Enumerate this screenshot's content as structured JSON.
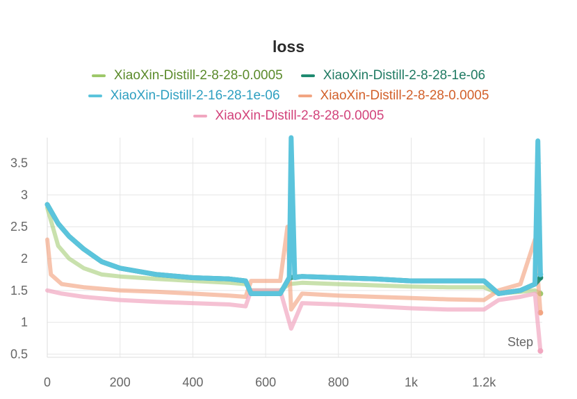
{
  "chart_data": {
    "type": "line",
    "title": "loss",
    "xlabel": "Step",
    "ylabel": "",
    "xlim": [
      0,
      1360
    ],
    "ylim": [
      0.45,
      3.9
    ],
    "grid": true,
    "legend_position": "top-center",
    "x_ticks": [
      {
        "value": 0,
        "label": "0"
      },
      {
        "value": 200,
        "label": "200"
      },
      {
        "value": 400,
        "label": "400"
      },
      {
        "value": 600,
        "label": "600"
      },
      {
        "value": 800,
        "label": "800"
      },
      {
        "value": 1000,
        "label": "1k"
      },
      {
        "value": 1200,
        "label": "1.2k"
      }
    ],
    "y_ticks": [
      {
        "value": 0.5,
        "label": "0.5"
      },
      {
        "value": 1,
        "label": "1"
      },
      {
        "value": 1.5,
        "label": "1.5"
      },
      {
        "value": 2,
        "label": "2"
      },
      {
        "value": 2.5,
        "label": "2.5"
      },
      {
        "value": 3,
        "label": "3"
      },
      {
        "value": 3.5,
        "label": "3.5"
      }
    ],
    "series": [
      {
        "name": "XiaoXin-Distill-2-8-28-0.0005",
        "color": "#9dc86a",
        "text_color": "#5a8a2a",
        "points": [
          [
            0,
            2.8
          ],
          [
            30,
            2.2
          ],
          [
            60,
            2.0
          ],
          [
            100,
            1.85
          ],
          [
            150,
            1.75
          ],
          [
            200,
            1.72
          ],
          [
            300,
            1.68
          ],
          [
            400,
            1.65
          ],
          [
            500,
            1.62
          ],
          [
            545,
            1.6
          ],
          [
            560,
            1.5
          ],
          [
            640,
            1.5
          ],
          [
            665,
            1.6
          ],
          [
            700,
            1.62
          ],
          [
            800,
            1.6
          ],
          [
            900,
            1.58
          ],
          [
            1000,
            1.56
          ],
          [
            1100,
            1.55
          ],
          [
            1200,
            1.55
          ],
          [
            1240,
            1.45
          ],
          [
            1300,
            1.48
          ],
          [
            1340,
            1.5
          ],
          [
            1355,
            1.45
          ]
        ]
      },
      {
        "name": "XiaoXin-Distill-2-8-28-1e-06",
        "color": "#1f8a70",
        "text_color": "#1f7a62",
        "points": [
          [
            0,
            2.85
          ],
          [
            30,
            2.55
          ],
          [
            60,
            2.35
          ],
          [
            100,
            2.15
          ],
          [
            150,
            1.95
          ],
          [
            200,
            1.85
          ],
          [
            300,
            1.75
          ],
          [
            400,
            1.7
          ],
          [
            500,
            1.68
          ],
          [
            545,
            1.65
          ],
          [
            560,
            1.45
          ],
          [
            640,
            1.45
          ],
          [
            665,
            1.7
          ],
          [
            700,
            1.72
          ],
          [
            800,
            1.7
          ],
          [
            900,
            1.68
          ],
          [
            1000,
            1.65
          ],
          [
            1100,
            1.65
          ],
          [
            1200,
            1.65
          ],
          [
            1240,
            1.45
          ],
          [
            1300,
            1.5
          ],
          [
            1340,
            1.6
          ],
          [
            1355,
            1.7
          ]
        ]
      },
      {
        "name": "XiaoXin-Distill-2-16-28-1e-06",
        "color": "#5bc4dc",
        "text_color": "#2e9fc0",
        "points": [
          [
            0,
            2.85
          ],
          [
            30,
            2.55
          ],
          [
            60,
            2.35
          ],
          [
            100,
            2.15
          ],
          [
            150,
            1.95
          ],
          [
            200,
            1.85
          ],
          [
            300,
            1.75
          ],
          [
            400,
            1.7
          ],
          [
            500,
            1.68
          ],
          [
            545,
            1.65
          ],
          [
            560,
            1.45
          ],
          [
            640,
            1.45
          ],
          [
            665,
            1.7
          ],
          [
            670,
            3.9
          ],
          [
            680,
            1.7
          ],
          [
            700,
            1.72
          ],
          [
            800,
            1.7
          ],
          [
            900,
            1.68
          ],
          [
            1000,
            1.65
          ],
          [
            1100,
            1.65
          ],
          [
            1200,
            1.65
          ],
          [
            1240,
            1.45
          ],
          [
            1300,
            1.5
          ],
          [
            1340,
            1.6
          ],
          [
            1348,
            3.85
          ],
          [
            1355,
            1.75
          ]
        ]
      },
      {
        "name": "XiaoXin-Distill-2-8-28-0.0005",
        "color": "#f2a582",
        "text_color": "#d2602a",
        "points": [
          [
            0,
            2.3
          ],
          [
            10,
            1.75
          ],
          [
            40,
            1.6
          ],
          [
            100,
            1.55
          ],
          [
            200,
            1.5
          ],
          [
            300,
            1.48
          ],
          [
            400,
            1.45
          ],
          [
            500,
            1.42
          ],
          [
            545,
            1.4
          ],
          [
            560,
            1.65
          ],
          [
            640,
            1.65
          ],
          [
            660,
            2.5
          ],
          [
            670,
            1.2
          ],
          [
            700,
            1.45
          ],
          [
            800,
            1.42
          ],
          [
            900,
            1.4
          ],
          [
            1000,
            1.38
          ],
          [
            1100,
            1.36
          ],
          [
            1200,
            1.35
          ],
          [
            1240,
            1.5
          ],
          [
            1300,
            1.6
          ],
          [
            1340,
            2.3
          ],
          [
            1355,
            1.15
          ]
        ]
      },
      {
        "name": "XiaoXin-Distill-2-8-28-0.0005",
        "color": "#f1a7c0",
        "text_color": "#d2427a",
        "points": [
          [
            0,
            1.5
          ],
          [
            40,
            1.45
          ],
          [
            100,
            1.4
          ],
          [
            200,
            1.35
          ],
          [
            300,
            1.32
          ],
          [
            400,
            1.3
          ],
          [
            500,
            1.28
          ],
          [
            545,
            1.25
          ],
          [
            560,
            1.5
          ],
          [
            640,
            1.5
          ],
          [
            670,
            0.9
          ],
          [
            700,
            1.3
          ],
          [
            800,
            1.28
          ],
          [
            900,
            1.25
          ],
          [
            1000,
            1.22
          ],
          [
            1100,
            1.2
          ],
          [
            1200,
            1.2
          ],
          [
            1240,
            1.35
          ],
          [
            1300,
            1.4
          ],
          [
            1340,
            1.45
          ],
          [
            1355,
            0.55
          ]
        ]
      }
    ]
  }
}
